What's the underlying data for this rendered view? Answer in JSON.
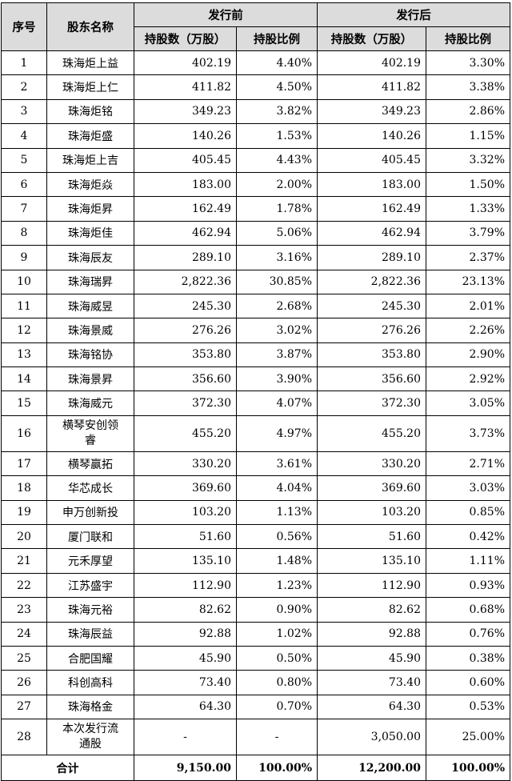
{
  "header": {
    "index": "序号",
    "name": "股东名称",
    "before": "发行前",
    "after": "发行后",
    "shares": "持股数（万股）",
    "ratio": "持股比例"
  },
  "rows": [
    {
      "idx": "1",
      "name": "珠海炬上益",
      "before_shares": "402.19",
      "before_ratio": "4.40%",
      "after_shares": "402.19",
      "after_ratio": "3.30%"
    },
    {
      "idx": "2",
      "name": "珠海炬上仁",
      "before_shares": "411.82",
      "before_ratio": "4.50%",
      "after_shares": "411.82",
      "after_ratio": "3.38%"
    },
    {
      "idx": "3",
      "name": "珠海炬铭",
      "before_shares": "349.23",
      "before_ratio": "3.82%",
      "after_shares": "349.23",
      "after_ratio": "2.86%"
    },
    {
      "idx": "4",
      "name": "珠海炬盛",
      "before_shares": "140.26",
      "before_ratio": "1.53%",
      "after_shares": "140.26",
      "after_ratio": "1.15%"
    },
    {
      "idx": "5",
      "name": "珠海炬上吉",
      "before_shares": "405.45",
      "before_ratio": "4.43%",
      "after_shares": "405.45",
      "after_ratio": "3.32%"
    },
    {
      "idx": "6",
      "name": "珠海炬焱",
      "before_shares": "183.00",
      "before_ratio": "2.00%",
      "after_shares": "183.00",
      "after_ratio": "1.50%"
    },
    {
      "idx": "7",
      "name": "珠海炬昇",
      "before_shares": "162.49",
      "before_ratio": "1.78%",
      "after_shares": "162.49",
      "after_ratio": "1.33%"
    },
    {
      "idx": "8",
      "name": "珠海炬佳",
      "before_shares": "462.94",
      "before_ratio": "5.06%",
      "after_shares": "462.94",
      "after_ratio": "3.79%"
    },
    {
      "idx": "9",
      "name": "珠海辰友",
      "before_shares": "289.10",
      "before_ratio": "3.16%",
      "after_shares": "289.10",
      "after_ratio": "2.37%"
    },
    {
      "idx": "10",
      "name": "珠海瑞昇",
      "before_shares": "2,822.36",
      "before_ratio": "30.85%",
      "after_shares": "2,822.36",
      "after_ratio": "23.13%"
    },
    {
      "idx": "11",
      "name": "珠海威昱",
      "before_shares": "245.30",
      "before_ratio": "2.68%",
      "after_shares": "245.30",
      "after_ratio": "2.01%"
    },
    {
      "idx": "12",
      "name": "珠海景威",
      "before_shares": "276.26",
      "before_ratio": "3.02%",
      "after_shares": "276.26",
      "after_ratio": "2.26%"
    },
    {
      "idx": "13",
      "name": "珠海铭协",
      "before_shares": "353.80",
      "before_ratio": "3.87%",
      "after_shares": "353.80",
      "after_ratio": "2.90%"
    },
    {
      "idx": "14",
      "name": "珠海景昇",
      "before_shares": "356.60",
      "before_ratio": "3.90%",
      "after_shares": "356.60",
      "after_ratio": "2.92%"
    },
    {
      "idx": "15",
      "name": "珠海威元",
      "before_shares": "372.30",
      "before_ratio": "4.07%",
      "after_shares": "372.30",
      "after_ratio": "3.05%"
    },
    {
      "idx": "16",
      "name": "横琴安创领睿",
      "before_shares": "455.20",
      "before_ratio": "4.97%",
      "after_shares": "455.20",
      "after_ratio": "3.73%"
    },
    {
      "idx": "17",
      "name": "横琴赢拓",
      "before_shares": "330.20",
      "before_ratio": "3.61%",
      "after_shares": "330.20",
      "after_ratio": "2.71%"
    },
    {
      "idx": "18",
      "name": "华芯成长",
      "before_shares": "369.60",
      "before_ratio": "4.04%",
      "after_shares": "369.60",
      "after_ratio": "3.03%"
    },
    {
      "idx": "19",
      "name": "申万创新投",
      "before_shares": "103.20",
      "before_ratio": "1.13%",
      "after_shares": "103.20",
      "after_ratio": "0.85%"
    },
    {
      "idx": "20",
      "name": "厦门联和",
      "before_shares": "51.60",
      "before_ratio": "0.56%",
      "after_shares": "51.60",
      "after_ratio": "0.42%"
    },
    {
      "idx": "21",
      "name": "元禾厚望",
      "before_shares": "135.10",
      "before_ratio": "1.48%",
      "after_shares": "135.10",
      "after_ratio": "1.11%"
    },
    {
      "idx": "22",
      "name": "江苏盛宇",
      "before_shares": "112.90",
      "before_ratio": "1.23%",
      "after_shares": "112.90",
      "after_ratio": "0.93%"
    },
    {
      "idx": "23",
      "name": "珠海元裕",
      "before_shares": "82.62",
      "before_ratio": "0.90%",
      "after_shares": "82.62",
      "after_ratio": "0.68%"
    },
    {
      "idx": "24",
      "name": "珠海辰益",
      "before_shares": "92.88",
      "before_ratio": "1.02%",
      "after_shares": "92.88",
      "after_ratio": "0.76%"
    },
    {
      "idx": "25",
      "name": "合肥国耀",
      "before_shares": "45.90",
      "before_ratio": "0.50%",
      "after_shares": "45.90",
      "after_ratio": "0.38%"
    },
    {
      "idx": "26",
      "name": "科创高科",
      "before_shares": "73.40",
      "before_ratio": "0.80%",
      "after_shares": "73.40",
      "after_ratio": "0.60%"
    },
    {
      "idx": "27",
      "name": "珠海格金",
      "before_shares": "64.30",
      "before_ratio": "0.70%",
      "after_shares": "64.30",
      "after_ratio": "0.53%"
    },
    {
      "idx": "28",
      "name": "本次发行流通股",
      "before_shares": "-",
      "before_ratio": "-",
      "after_shares": "3,050.00",
      "after_ratio": "25.00%"
    }
  ],
  "total": {
    "label": "合计",
    "before_shares": "9,150.00",
    "before_ratio": "100.00%",
    "after_shares": "12,200.00",
    "after_ratio": "100.00%"
  }
}
